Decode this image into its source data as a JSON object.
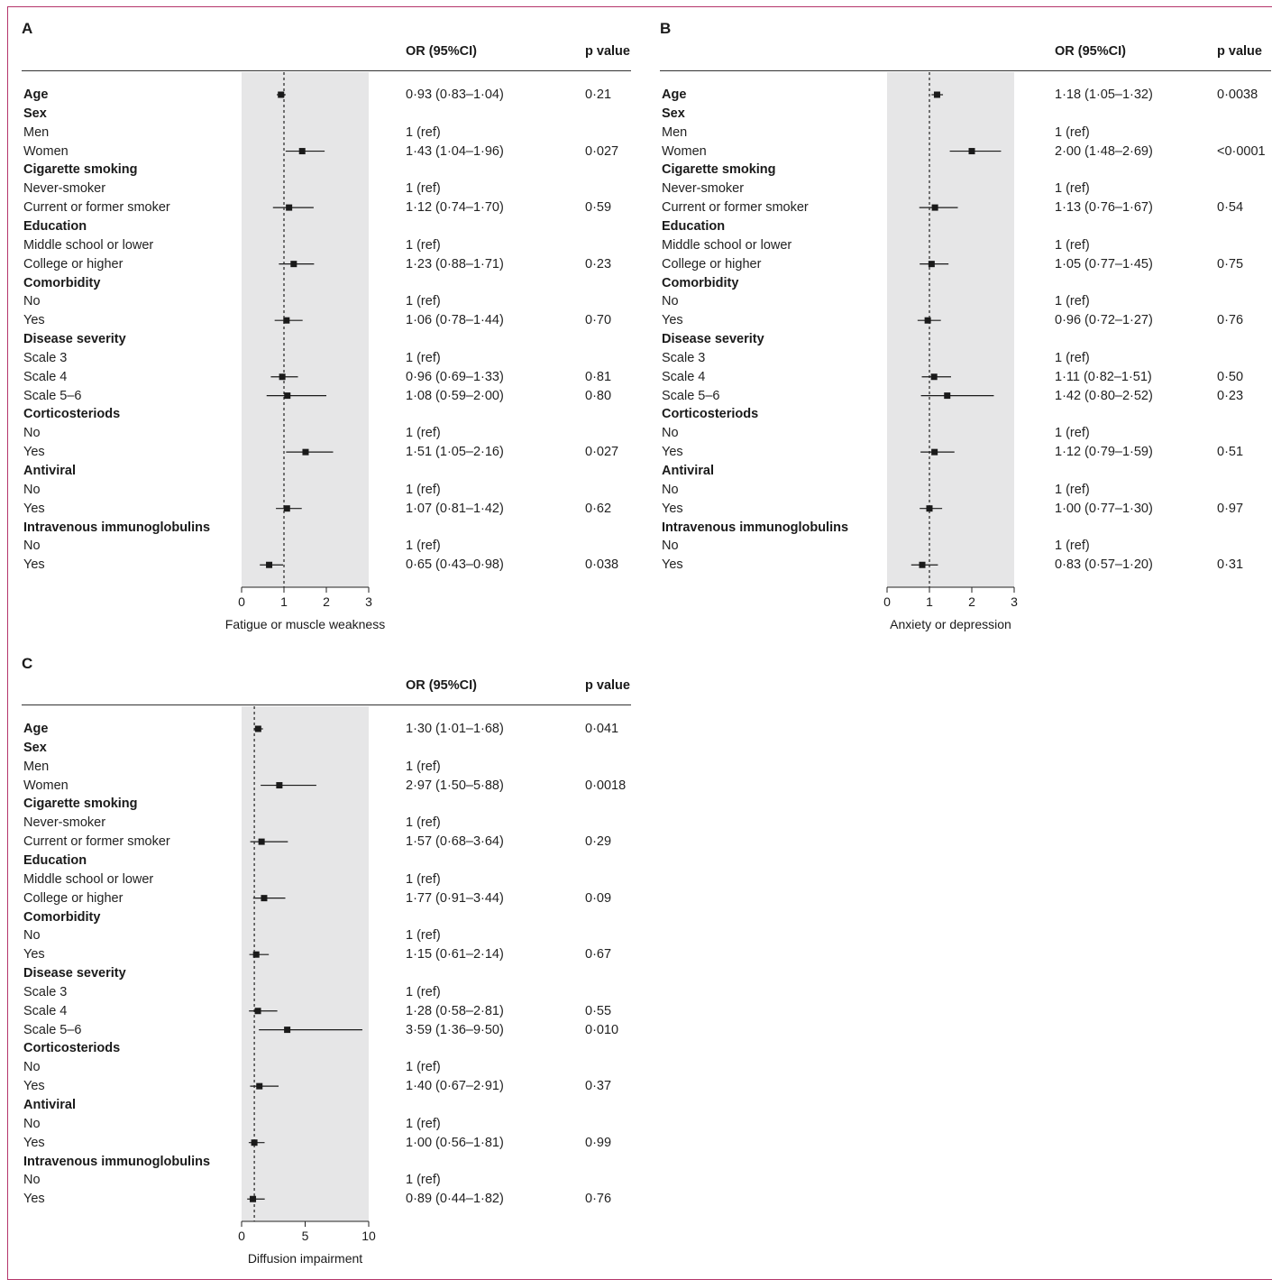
{
  "chart_data": [
    {
      "panel": "A",
      "type": "scatter",
      "xlabel": "Fatigue or muscle weakness",
      "xlim": [
        0,
        3
      ],
      "xticks": [
        0,
        1,
        2,
        3
      ],
      "reference_line": 1,
      "column_headers": {
        "or": "OR (95%CI)",
        "p": "p value"
      },
      "rows": [
        {
          "label": "Age",
          "group": true,
          "or_text": "0·93 (0·83–1·04)",
          "p": "0·21",
          "est": 0.93,
          "lo": 0.83,
          "hi": 1.04
        },
        {
          "label": "Sex",
          "group": true
        },
        {
          "label": "Men",
          "or_text": "1 (ref)"
        },
        {
          "label": "Women",
          "or_text": "1·43 (1·04–1·96)",
          "p": "0·027",
          "est": 1.43,
          "lo": 1.04,
          "hi": 1.96
        },
        {
          "label": "Cigarette smoking",
          "group": true
        },
        {
          "label": "Never-smoker",
          "or_text": "1 (ref)"
        },
        {
          "label": "Current or former smoker",
          "or_text": "1·12 (0·74–1·70)",
          "p": "0·59",
          "est": 1.12,
          "lo": 0.74,
          "hi": 1.7
        },
        {
          "label": "Education",
          "group": true
        },
        {
          "label": "Middle school or lower",
          "or_text": "1 (ref)"
        },
        {
          "label": "College or higher",
          "or_text": "1·23 (0·88–1·71)",
          "p": "0·23",
          "est": 1.23,
          "lo": 0.88,
          "hi": 1.71
        },
        {
          "label": "Comorbidity",
          "group": true
        },
        {
          "label": "No",
          "or_text": "1 (ref)"
        },
        {
          "label": "Yes",
          "or_text": "1·06 (0·78–1·44)",
          "p": "0·70",
          "est": 1.06,
          "lo": 0.78,
          "hi": 1.44
        },
        {
          "label": "Disease severity",
          "group": true
        },
        {
          "label": "Scale 3",
          "or_text": "1 (ref)"
        },
        {
          "label": "Scale 4",
          "or_text": "0·96 (0·69–1·33)",
          "p": "0·81",
          "est": 0.96,
          "lo": 0.69,
          "hi": 1.33
        },
        {
          "label": "Scale 5–6",
          "or_text": "1·08 (0·59–2·00)",
          "p": "0·80",
          "est": 1.08,
          "lo": 0.59,
          "hi": 2.0
        },
        {
          "label": "Corticosteriods",
          "group": true
        },
        {
          "label": "No",
          "or_text": "1 (ref)"
        },
        {
          "label": "Yes",
          "or_text": "1·51 (1·05–2·16)",
          "p": "0·027",
          "est": 1.51,
          "lo": 1.05,
          "hi": 2.16
        },
        {
          "label": "Antiviral",
          "group": true
        },
        {
          "label": "No",
          "or_text": "1 (ref)"
        },
        {
          "label": "Yes",
          "or_text": "1·07 (0·81–1·42)",
          "p": "0·62",
          "est": 1.07,
          "lo": 0.81,
          "hi": 1.42
        },
        {
          "label": "Intravenous immunoglobulins",
          "group": true
        },
        {
          "label": "No",
          "or_text": "1 (ref)"
        },
        {
          "label": "Yes",
          "or_text": "0·65 (0·43–0·98)",
          "p": "0·038",
          "est": 0.65,
          "lo": 0.43,
          "hi": 0.98
        }
      ]
    },
    {
      "panel": "B",
      "type": "scatter",
      "xlabel": "Anxiety or depression",
      "xlim": [
        0,
        3
      ],
      "xticks": [
        0,
        1,
        2,
        3
      ],
      "reference_line": 1,
      "column_headers": {
        "or": "OR (95%CI)",
        "p": "p value"
      },
      "rows": [
        {
          "label": "Age",
          "group": true,
          "or_text": "1·18 (1·05–1·32)",
          "p": "0·0038",
          "est": 1.18,
          "lo": 1.05,
          "hi": 1.32
        },
        {
          "label": "Sex",
          "group": true
        },
        {
          "label": "Men",
          "or_text": "1 (ref)"
        },
        {
          "label": "Women",
          "or_text": "2·00 (1·48–2·69)",
          "p": "<0·0001",
          "est": 2.0,
          "lo": 1.48,
          "hi": 2.69
        },
        {
          "label": "Cigarette smoking",
          "group": true
        },
        {
          "label": "Never-smoker",
          "or_text": "1 (ref)"
        },
        {
          "label": "Current or former smoker",
          "or_text": "1·13 (0·76–1·67)",
          "p": "0·54",
          "est": 1.13,
          "lo": 0.76,
          "hi": 1.67
        },
        {
          "label": "Education",
          "group": true
        },
        {
          "label": "Middle school or lower",
          "or_text": "1 (ref)"
        },
        {
          "label": "College or higher",
          "or_text": "1·05 (0·77–1·45)",
          "p": "0·75",
          "est": 1.05,
          "lo": 0.77,
          "hi": 1.45
        },
        {
          "label": "Comorbidity",
          "group": true
        },
        {
          "label": "No",
          "or_text": "1 (ref)"
        },
        {
          "label": "Yes",
          "or_text": "0·96 (0·72–1·27)",
          "p": "0·76",
          "est": 0.96,
          "lo": 0.72,
          "hi": 1.27
        },
        {
          "label": "Disease severity",
          "group": true
        },
        {
          "label": "Scale 3",
          "or_text": "1 (ref)"
        },
        {
          "label": "Scale 4",
          "or_text": "1·11 (0·82–1·51)",
          "p": "0·50",
          "est": 1.11,
          "lo": 0.82,
          "hi": 1.51
        },
        {
          "label": "Scale 5–6",
          "or_text": "1·42 (0·80–2·52)",
          "p": "0·23",
          "est": 1.42,
          "lo": 0.8,
          "hi": 2.52
        },
        {
          "label": "Corticosteriods",
          "group": true
        },
        {
          "label": "No",
          "or_text": "1 (ref)"
        },
        {
          "label": "Yes",
          "or_text": "1·12 (0·79–1·59)",
          "p": "0·51",
          "est": 1.12,
          "lo": 0.79,
          "hi": 1.59
        },
        {
          "label": "Antiviral",
          "group": true
        },
        {
          "label": "No",
          "or_text": "1 (ref)"
        },
        {
          "label": "Yes",
          "or_text": "1·00 (0·77–1·30)",
          "p": "0·97",
          "est": 1.0,
          "lo": 0.77,
          "hi": 1.3
        },
        {
          "label": "Intravenous immunoglobulins",
          "group": true
        },
        {
          "label": "No",
          "or_text": "1 (ref)"
        },
        {
          "label": "Yes",
          "or_text": "0·83 (0·57–1·20)",
          "p": "0·31",
          "est": 0.83,
          "lo": 0.57,
          "hi": 1.2
        }
      ]
    },
    {
      "panel": "C",
      "type": "scatter",
      "xlabel": "Diffusion impairment",
      "xlim": [
        0,
        10
      ],
      "xticks": [
        0,
        5,
        10
      ],
      "reference_line": 1,
      "column_headers": {
        "or": "OR (95%CI)",
        "p": "p value"
      },
      "rows": [
        {
          "label": "Age",
          "group": true,
          "or_text": "1·30 (1·01–1·68)",
          "p": "0·041",
          "est": 1.3,
          "lo": 1.01,
          "hi": 1.68
        },
        {
          "label": "Sex",
          "group": true
        },
        {
          "label": "Men",
          "or_text": "1 (ref)"
        },
        {
          "label": "Women",
          "or_text": "2·97 (1·50–5·88)",
          "p": "0·0018",
          "est": 2.97,
          "lo": 1.5,
          "hi": 5.88
        },
        {
          "label": "Cigarette smoking",
          "group": true
        },
        {
          "label": "Never-smoker",
          "or_text": "1 (ref)"
        },
        {
          "label": "Current or former smoker",
          "or_text": "1·57 (0·68–3·64)",
          "p": "0·29",
          "est": 1.57,
          "lo": 0.68,
          "hi": 3.64
        },
        {
          "label": "Education",
          "group": true
        },
        {
          "label": "Middle school or lower",
          "or_text": "1 (ref)"
        },
        {
          "label": "College or higher",
          "or_text": "1·77 (0·91–3·44)",
          "p": "0·09",
          "est": 1.77,
          "lo": 0.91,
          "hi": 3.44
        },
        {
          "label": "Comorbidity",
          "group": true
        },
        {
          "label": "No",
          "or_text": "1 (ref)"
        },
        {
          "label": "Yes",
          "or_text": "1·15 (0·61–2·14)",
          "p": "0·67",
          "est": 1.15,
          "lo": 0.61,
          "hi": 2.14
        },
        {
          "label": "Disease severity",
          "group": true
        },
        {
          "label": "Scale 3",
          "or_text": "1 (ref)"
        },
        {
          "label": "Scale 4",
          "or_text": "1·28 (0·58–2·81)",
          "p": "0·55",
          "est": 1.28,
          "lo": 0.58,
          "hi": 2.81
        },
        {
          "label": "Scale 5–6",
          "or_text": "3·59 (1·36–9·50)",
          "p": "0·010",
          "est": 3.59,
          "lo": 1.36,
          "hi": 9.5
        },
        {
          "label": "Corticosteriods",
          "group": true
        },
        {
          "label": "No",
          "or_text": "1 (ref)"
        },
        {
          "label": "Yes",
          "or_text": "1·40 (0·67–2·91)",
          "p": "0·37",
          "est": 1.4,
          "lo": 0.67,
          "hi": 2.91
        },
        {
          "label": "Antiviral",
          "group": true
        },
        {
          "label": "No",
          "or_text": "1 (ref)"
        },
        {
          "label": "Yes",
          "or_text": "1·00 (0·56–1·81)",
          "p": "0·99",
          "est": 1.0,
          "lo": 0.56,
          "hi": 1.81
        },
        {
          "label": "Intravenous immunoglobulins",
          "group": true
        },
        {
          "label": "No",
          "or_text": "1 (ref)"
        },
        {
          "label": "Yes",
          "or_text": "0·89 (0·44–1·82)",
          "p": "0·76",
          "est": 0.89,
          "lo": 0.44,
          "hi": 1.82
        }
      ]
    }
  ],
  "colors": {
    "shade": "#e6e6e7",
    "frame": "#b5356b",
    "ink": "#1a1a1a"
  }
}
